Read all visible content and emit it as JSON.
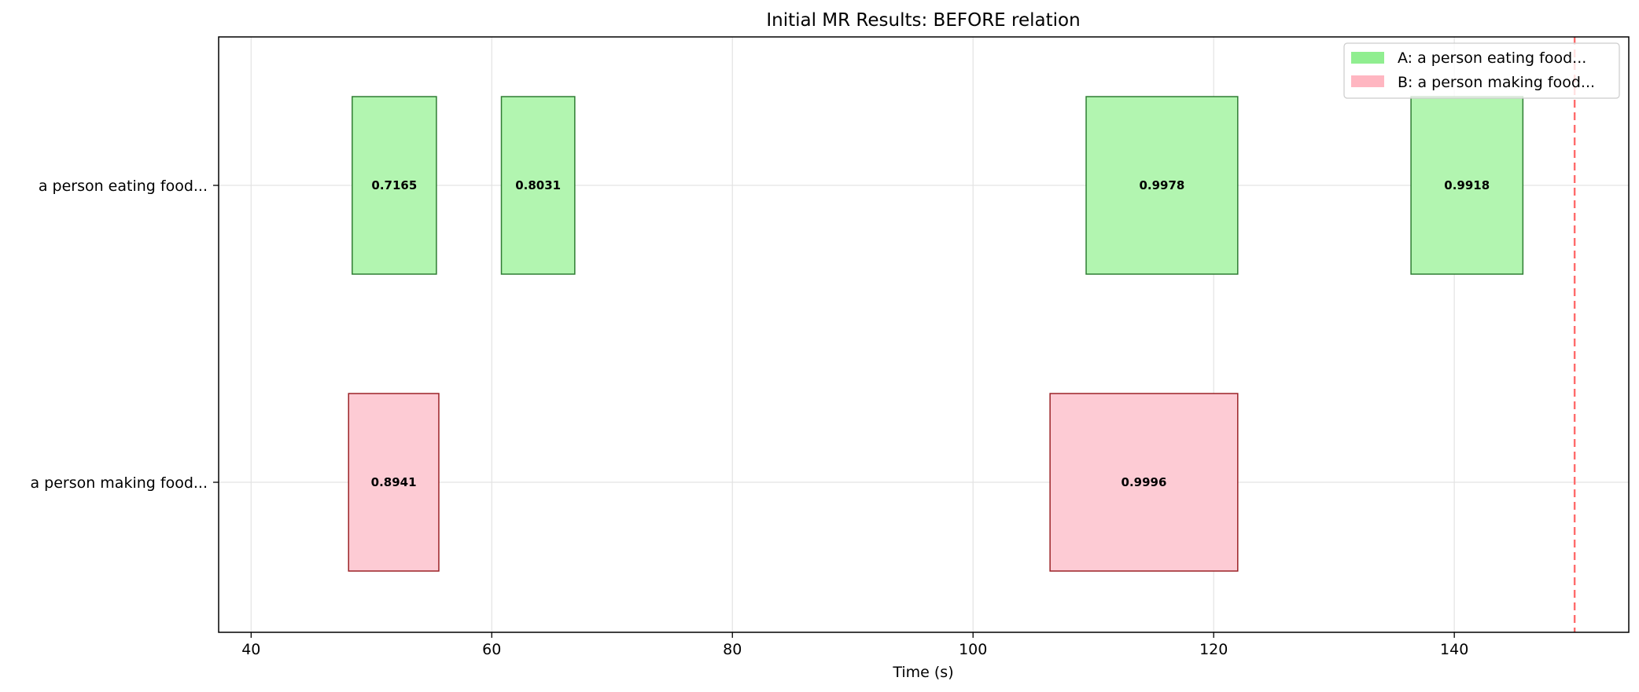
{
  "chart_data": {
    "type": "gantt",
    "title": "Initial MR Results: BEFORE relation",
    "xlabel": "Time (s)",
    "ylabel": "",
    "xlim": [
      37.3,
      154.5
    ],
    "xticks": [
      40,
      60,
      80,
      100,
      120,
      140
    ],
    "grid": true,
    "legend_placement": "top-right",
    "rows": [
      {
        "label": "a person eating food..."
      },
      {
        "label": "a person making food..."
      }
    ],
    "series": [
      {
        "name": "A: a person eating food...",
        "row": 0,
        "fill": "#b2f5b0",
        "legend_color": "#90ee90",
        "stroke": "#2e7d32",
        "segments": [
          {
            "start": 48.4,
            "end": 55.4,
            "score": "0.7165"
          },
          {
            "start": 60.8,
            "end": 66.9,
            "score": "0.8031"
          },
          {
            "start": 109.4,
            "end": 122.0,
            "score": "0.9978"
          },
          {
            "start": 136.4,
            "end": 145.7,
            "score": "0.9918"
          }
        ]
      },
      {
        "name": "B: a person making food...",
        "row": 1,
        "fill": "#fdcbd4",
        "legend_color": "#ffb6c1",
        "stroke": "#9b2226",
        "segments": [
          {
            "start": 48.1,
            "end": 55.6,
            "score": "0.8941"
          },
          {
            "start": 106.4,
            "end": 122.0,
            "score": "0.9996"
          }
        ]
      }
    ],
    "reference_line": {
      "x": 150.0,
      "color": "#ff6b6b",
      "style": "dashed"
    }
  }
}
